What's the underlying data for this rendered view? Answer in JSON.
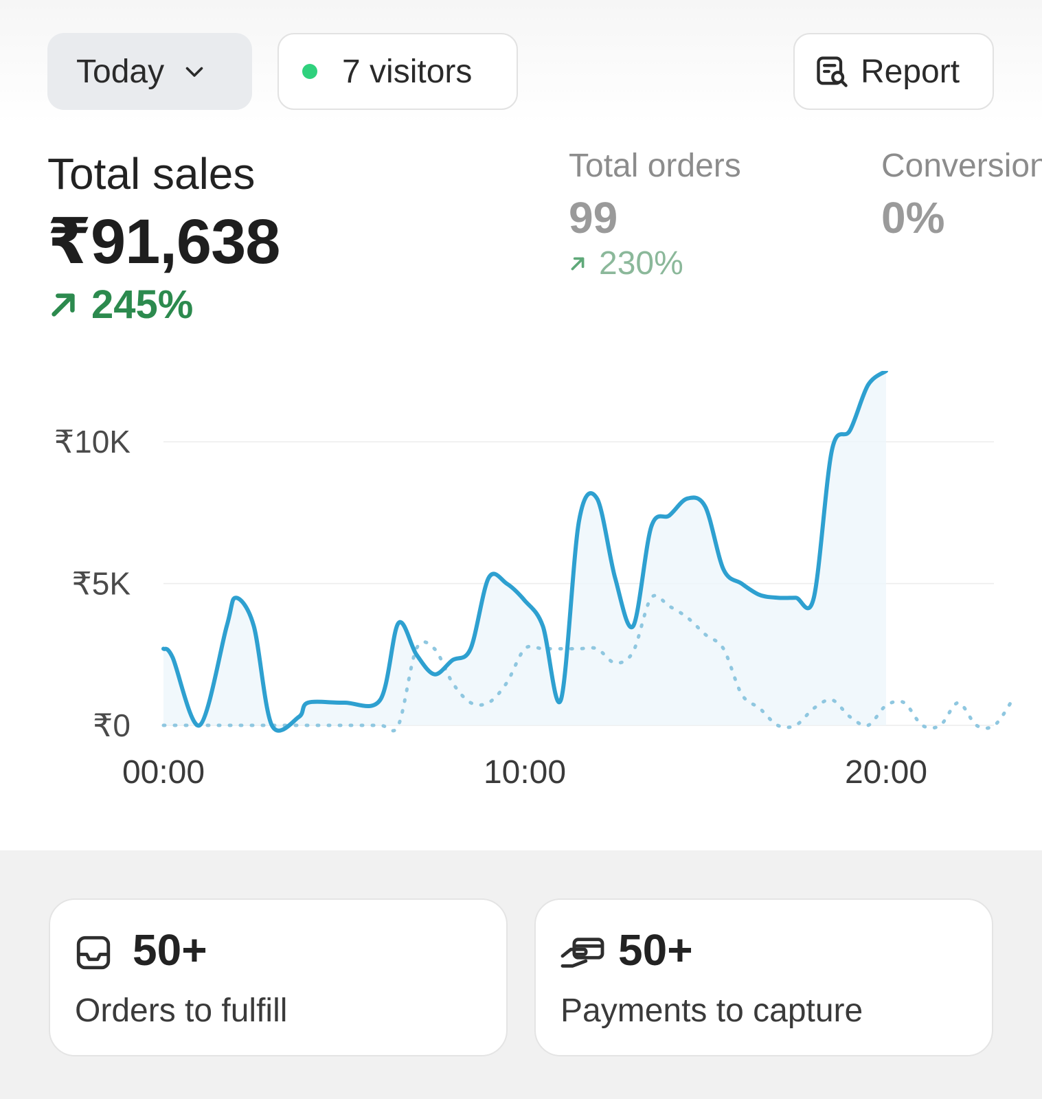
{
  "toolbar": {
    "date_range_label": "Today",
    "visitors_label": "7 visitors",
    "report_label": "Report"
  },
  "metrics": {
    "total_sales": {
      "title": "Total sales",
      "value": "₹91,638",
      "change": "245%"
    },
    "total_orders": {
      "title": "Total orders",
      "value": "99",
      "change": "230%"
    },
    "conversion": {
      "title": "Conversion",
      "value": "0%"
    }
  },
  "colors": {
    "accent": "#2ea0d0",
    "positive": "#2c8a4e",
    "live_dot": "#2fd17d"
  },
  "chart_data": {
    "type": "line",
    "y_ticks": [
      "₹0",
      "₹5K",
      "₹10K"
    ],
    "x_ticks": [
      "00:00",
      "10:00",
      "20:00"
    ],
    "ylim": [
      0,
      12500
    ],
    "xlim": [
      0,
      23.5
    ],
    "grid": true,
    "series": [
      {
        "style": "solid",
        "x": [
          0,
          0.25,
          1,
          1.75,
          2,
          2.5,
          3,
          3.75,
          4,
          5,
          6,
          6.5,
          7,
          7.5,
          8,
          8.5,
          9,
          9.5,
          10,
          10.5,
          11,
          11.5,
          12,
          12.5,
          13,
          13.5,
          14,
          14.5,
          15,
          15.5,
          16,
          16.5,
          17,
          17.5,
          18,
          18.5,
          19,
          19.5,
          20
        ],
        "y": [
          2700,
          2400,
          0,
          3500,
          4500,
          3500,
          0,
          300,
          800,
          800,
          900,
          3600,
          2500,
          1800,
          2300,
          2700,
          5200,
          5000,
          4400,
          3500,
          900,
          7200,
          8000,
          5200,
          3500,
          7000,
          7400,
          8000,
          7700,
          5500,
          5000,
          4600,
          4500,
          4500,
          4500,
          9700,
          10400,
          12000,
          12500
        ]
      },
      {
        "style": "dotted",
        "x": [
          0,
          1,
          2,
          3,
          4,
          5,
          6,
          6.5,
          7,
          7.5,
          8,
          8.5,
          9,
          9.5,
          10,
          10.5,
          11,
          11.5,
          12,
          12.5,
          13,
          13.5,
          14,
          14.5,
          15,
          15.5,
          16,
          16.5,
          17,
          17.5,
          18,
          18.5,
          19,
          19.5,
          20,
          20.5,
          21,
          21.5,
          22,
          22.5,
          23,
          23.5
        ],
        "y": [
          0,
          0,
          0,
          0,
          0,
          0,
          0,
          0,
          2700,
          2700,
          1500,
          800,
          800,
          1500,
          2700,
          2700,
          2700,
          2700,
          2700,
          2200,
          2600,
          4500,
          4200,
          3800,
          3200,
          2700,
          1100,
          600,
          0,
          0,
          600,
          900,
          300,
          0,
          700,
          800,
          0,
          0,
          800,
          0,
          0,
          900
        ]
      }
    ]
  },
  "action_cards": [
    {
      "count": "50+",
      "label": "Orders to fulfill",
      "icon": "inbox-icon"
    },
    {
      "count": "50+",
      "label": "Payments to capture",
      "icon": "payment-hand-icon"
    }
  ]
}
